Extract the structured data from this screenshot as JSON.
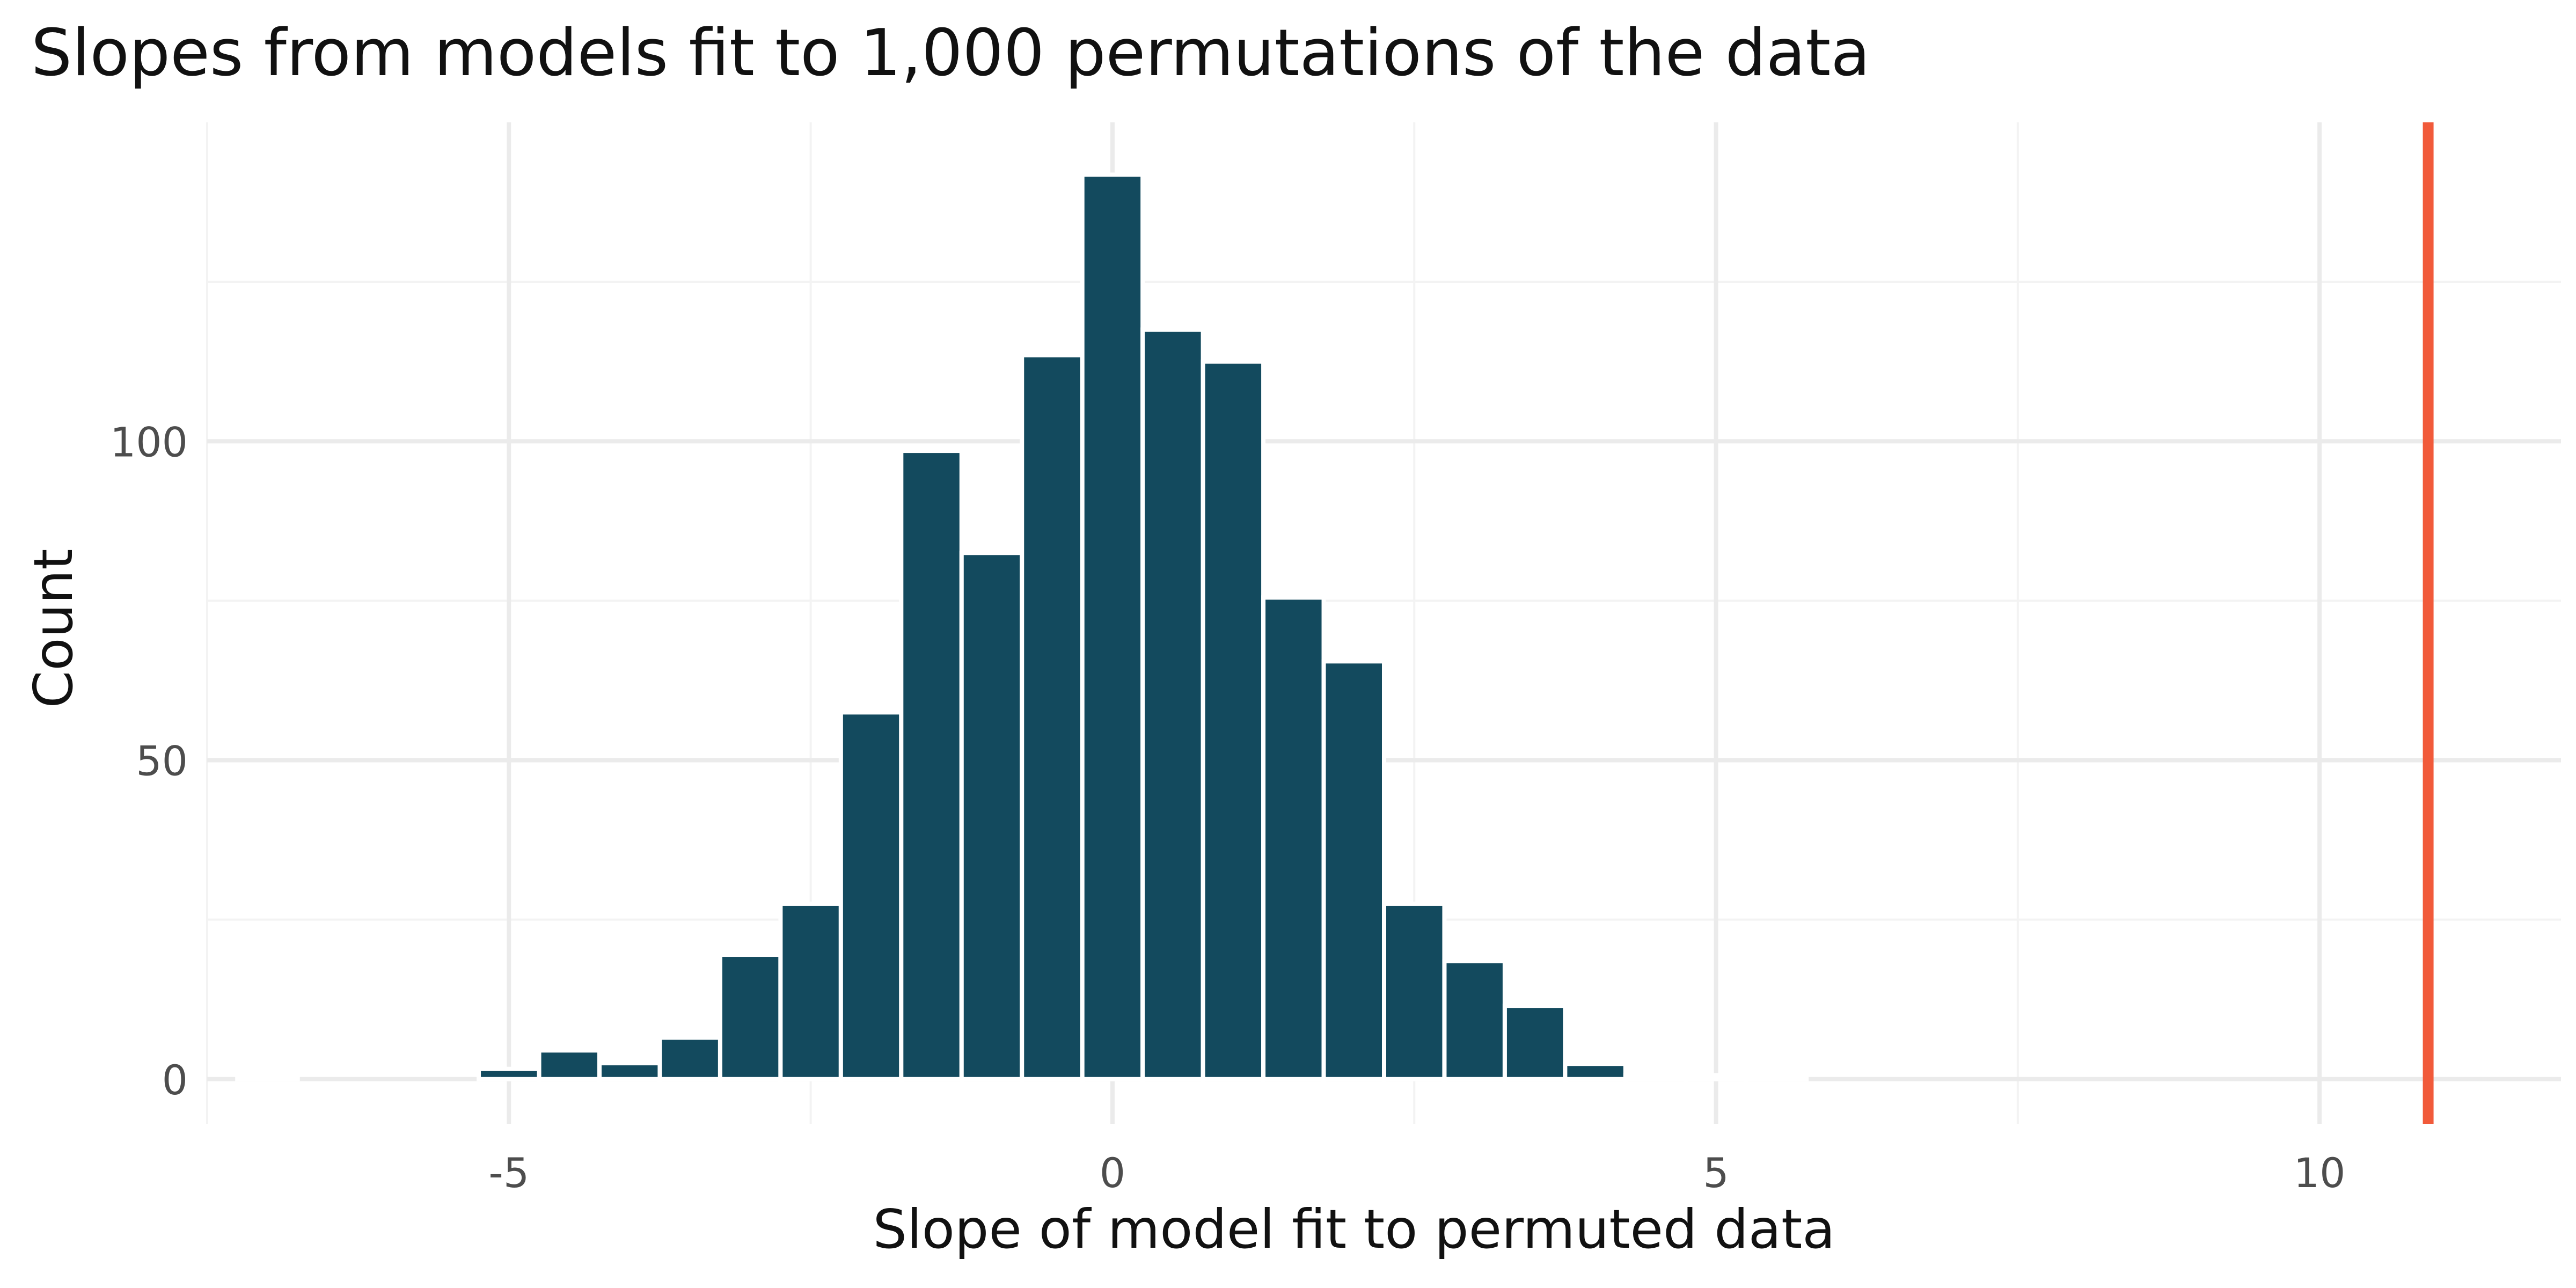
{
  "chart_data": {
    "type": "bar",
    "title": "Slopes from models fit to 1,000 permutations of the data",
    "xlabel": "Slope of model fit to permuted data",
    "ylabel": "Count",
    "xlim": [
      -7.5,
      12
    ],
    "ylim": [
      -7,
      150
    ],
    "x_ticks": [
      -5,
      0,
      5,
      10
    ],
    "x_tick_labels": [
      "-5",
      "0",
      "5",
      "10"
    ],
    "y_ticks": [
      0,
      50,
      100
    ],
    "y_tick_labels": [
      "0",
      "50",
      "100"
    ],
    "x_minor_gridlines": [
      -7.5,
      -2.5,
      2.5,
      7.5
    ],
    "y_minor_gridlines": [
      25,
      75,
      125
    ],
    "grid": true,
    "bin_width": 0.5,
    "bins": [
      {
        "x0": -7.25,
        "x1": -6.75,
        "count": 0.6
      },
      {
        "x0": -5.25,
        "x1": -4.75,
        "count": 1.6
      },
      {
        "x0": -4.75,
        "x1": -4.25,
        "count": 4.5
      },
      {
        "x0": -4.25,
        "x1": -3.75,
        "count": 2.5
      },
      {
        "x0": -3.75,
        "x1": -3.25,
        "count": 6.5
      },
      {
        "x0": -3.25,
        "x1": -2.75,
        "count": 19.5
      },
      {
        "x0": -2.75,
        "x1": -2.25,
        "count": 27.5
      },
      {
        "x0": -2.25,
        "x1": -1.75,
        "count": 57.5
      },
      {
        "x0": -1.75,
        "x1": -1.25,
        "count": 98.5
      },
      {
        "x0": -1.25,
        "x1": -0.75,
        "count": 82.5
      },
      {
        "x0": -0.75,
        "x1": -0.25,
        "count": 113.5
      },
      {
        "x0": -0.25,
        "x1": 0.25,
        "count": 141.8
      },
      {
        "x0": 0.25,
        "x1": 0.75,
        "count": 117.5
      },
      {
        "x0": 0.75,
        "x1": 1.25,
        "count": 112.5
      },
      {
        "x0": 1.25,
        "x1": 1.75,
        "count": 75.5
      },
      {
        "x0": 1.75,
        "x1": 2.25,
        "count": 65.5
      },
      {
        "x0": 2.25,
        "x1": 2.75,
        "count": 27.5
      },
      {
        "x0": 2.75,
        "x1": 3.25,
        "count": 18.5
      },
      {
        "x0": 3.25,
        "x1": 3.75,
        "count": 11.5
      },
      {
        "x0": 3.75,
        "x1": 4.25,
        "count": 2.4
      },
      {
        "x0": 4.25,
        "x1": 4.75,
        "count": 0.6
      },
      {
        "x0": 4.75,
        "x1": 5.25,
        "count": 0.6
      },
      {
        "x0": 5.25,
        "x1": 5.75,
        "count": 0.6
      }
    ],
    "observed_slope": 10.9,
    "colors": {
      "bars": "#134a5e",
      "observed_line": "#f15a3a",
      "grid_major": "#ebebeb",
      "grid_minor": "#f3f3f3",
      "background": "#ffffff"
    },
    "legend": "none"
  }
}
